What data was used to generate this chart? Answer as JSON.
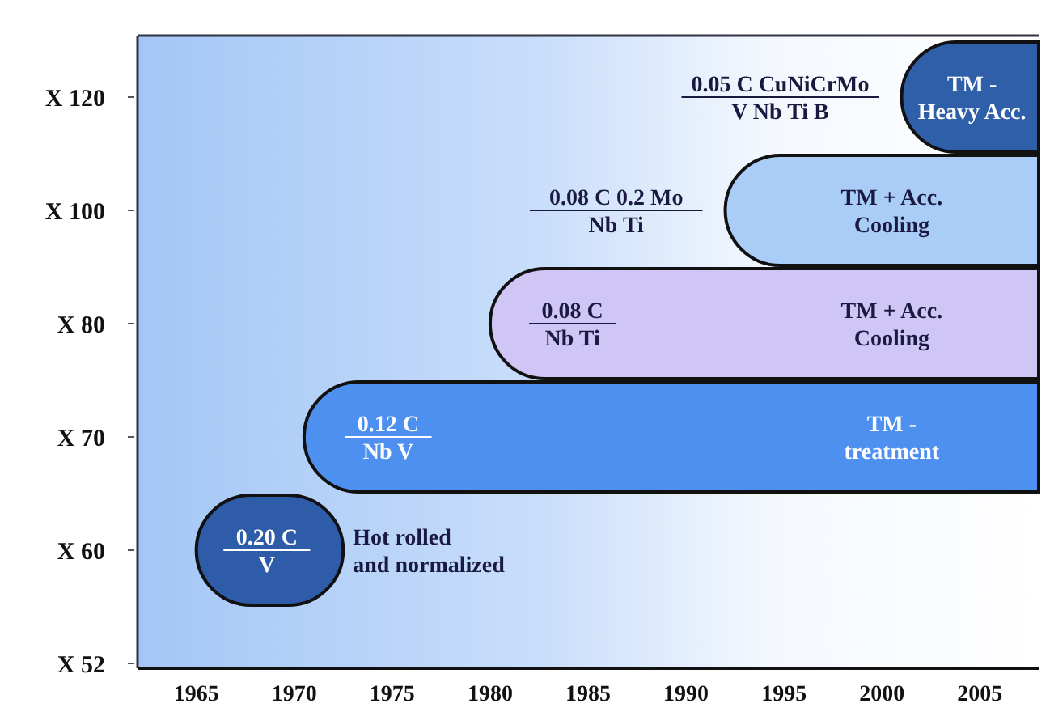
{
  "chart_data": {
    "type": "bar",
    "orientation": "horizontal",
    "categories": [
      "X 120",
      "X 100",
      "X 80",
      "X 70",
      "X 60",
      "X 52"
    ],
    "base": [
      2001,
      1992,
      1980,
      1970.5,
      1965,
      null
    ],
    "values": [
      7,
      16,
      28,
      37.5,
      7.5,
      null
    ],
    "colors": [
      "#2f5fa8",
      "#a9cdf6",
      "#cfc6f6",
      "#4e90f0",
      "#2f5ca8",
      null
    ],
    "xlim": [
      1962,
      2008
    ],
    "xticks": [
      1965,
      1970,
      1975,
      1980,
      1985,
      1990,
      1995,
      2000,
      2005
    ],
    "grid": false,
    "annotations": [
      "0.05 C CuNiCrMo\nV Nb Ti B",
      {
        "text": "TM -\nHeavy Acc.",
        "x": 2004.6,
        "y": "X 120"
      },
      "0.08 C 0.2 Mo\nNb Ti",
      {
        "text": "TM + Acc.\nCooling",
        "x": 2000.5,
        "y": "X 100"
      },
      {
        "text": "0.08 C\nNb Ti",
        "x": 1984.2,
        "y": "X 80"
      },
      {
        "text": "TM + Acc.\nCooling",
        "x": 2000.5,
        "y": "X 80"
      },
      {
        "text": "0.12 C\nNb V",
        "x": 1974.8,
        "y": "X 70"
      },
      {
        "text": "TM -\ntreatment",
        "x": 2000.5,
        "y": "X 70"
      },
      {
        "text": "0.20 C\nV",
        "x": 1968.6,
        "y": "X 60"
      },
      "Hot rolled\nand normalized"
    ]
  }
}
